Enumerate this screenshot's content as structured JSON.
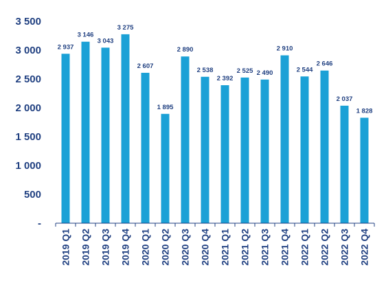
{
  "colors": {
    "bar": "#1ba1d6",
    "axis_text": "#1f3f80",
    "data_label": "#1f3f80",
    "axis_line": "#1f3f80"
  },
  "chart_data": {
    "type": "bar",
    "categories": [
      "2019 Q1",
      "2019 Q2",
      "2019 Q3",
      "2019 Q4",
      "2020 Q1",
      "2020 Q2",
      "2020 Q3",
      "2020 Q4",
      "2021 Q1",
      "2021 Q2",
      "2021 Q3",
      "2021 Q4",
      "2022 Q1",
      "2022 Q2",
      "2022 Q3",
      "2022 Q4"
    ],
    "values": [
      2937,
      3146,
      3043,
      3275,
      2607,
      1895,
      2890,
      2538,
      2392,
      2525,
      2490,
      2910,
      2544,
      2646,
      2037,
      1828
    ],
    "data_labels": [
      "2 937",
      "3 146",
      "3 043",
      "3 275",
      "2 607",
      "1 895",
      "2 890",
      "2 538",
      "2 392",
      "2 525",
      "2 490",
      "2 910",
      "2 544",
      "2 646",
      "2 037",
      "1 828"
    ],
    "ylim": [
      0,
      3500
    ],
    "yticks": [
      0,
      500,
      1000,
      1500,
      2000,
      2500,
      3000,
      3500
    ],
    "ytick_labels": [
      "-",
      "500",
      "1 000",
      "1 500",
      "2 000",
      "2 500",
      "3 000",
      "3 500"
    ],
    "title": "",
    "xlabel": "",
    "ylabel": "",
    "grid": false,
    "legend": "none"
  }
}
